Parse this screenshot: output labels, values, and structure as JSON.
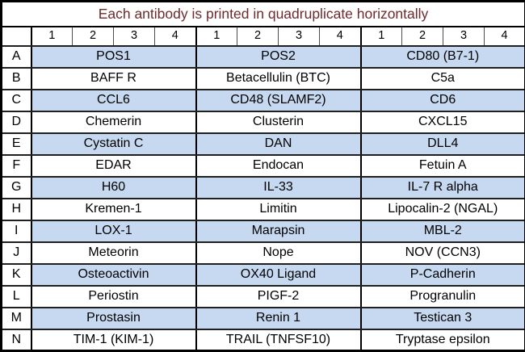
{
  "title": "Each antibody is printed in quadruplicate horizontally",
  "colors": {
    "title_text": "#6e2a2a",
    "shaded_row_fill": "#c6d9f0",
    "grid_line": "#1f1f1f",
    "thick_line": "#000000"
  },
  "header_numbers": [
    "1",
    "2",
    "3",
    "4",
    "1",
    "2",
    "3",
    "4",
    "1",
    "2",
    "3",
    "4"
  ],
  "rows": [
    {
      "letter": "A",
      "shaded": true,
      "cells": [
        "POS1",
        "POS2",
        "CD80 (B7-1)"
      ]
    },
    {
      "letter": "B",
      "shaded": false,
      "cells": [
        "BAFF R",
        "Betacellulin (BTC)",
        "C5a"
      ]
    },
    {
      "letter": "C",
      "shaded": true,
      "cells": [
        "CCL6",
        "CD48 (SLAMF2)",
        "CD6"
      ]
    },
    {
      "letter": "D",
      "shaded": false,
      "cells": [
        "Chemerin",
        "Clusterin",
        "CXCL15"
      ]
    },
    {
      "letter": "E",
      "shaded": true,
      "cells": [
        "Cystatin C",
        "DAN",
        "DLL4"
      ]
    },
    {
      "letter": "F",
      "shaded": false,
      "cells": [
        "EDAR",
        "Endocan",
        "Fetuin A"
      ]
    },
    {
      "letter": "G",
      "shaded": true,
      "cells": [
        "H60",
        "IL-33",
        "IL-7 R alpha"
      ]
    },
    {
      "letter": "H",
      "shaded": false,
      "cells": [
        "Kremen-1",
        "Limitin",
        "Lipocalin-2 (NGAL)"
      ]
    },
    {
      "letter": "I",
      "shaded": true,
      "cells": [
        "LOX-1",
        "Marapsin",
        "MBL-2"
      ]
    },
    {
      "letter": "J",
      "shaded": false,
      "cells": [
        "Meteorin",
        "Nope",
        "NOV (CCN3)"
      ]
    },
    {
      "letter": "K",
      "shaded": true,
      "cells": [
        "Osteoactivin",
        "OX40 Ligand",
        "P-Cadherin"
      ]
    },
    {
      "letter": "L",
      "shaded": false,
      "cells": [
        "Periostin",
        "PIGF-2",
        "Progranulin"
      ]
    },
    {
      "letter": "M",
      "shaded": true,
      "cells": [
        "Prostasin",
        "Renin 1",
        "Testican 3"
      ]
    },
    {
      "letter": "N",
      "shaded": false,
      "cells": [
        "TIM-1 (KIM-1)",
        "TRAIL (TNFSF10)",
        "Tryptase epsilon"
      ]
    }
  ]
}
